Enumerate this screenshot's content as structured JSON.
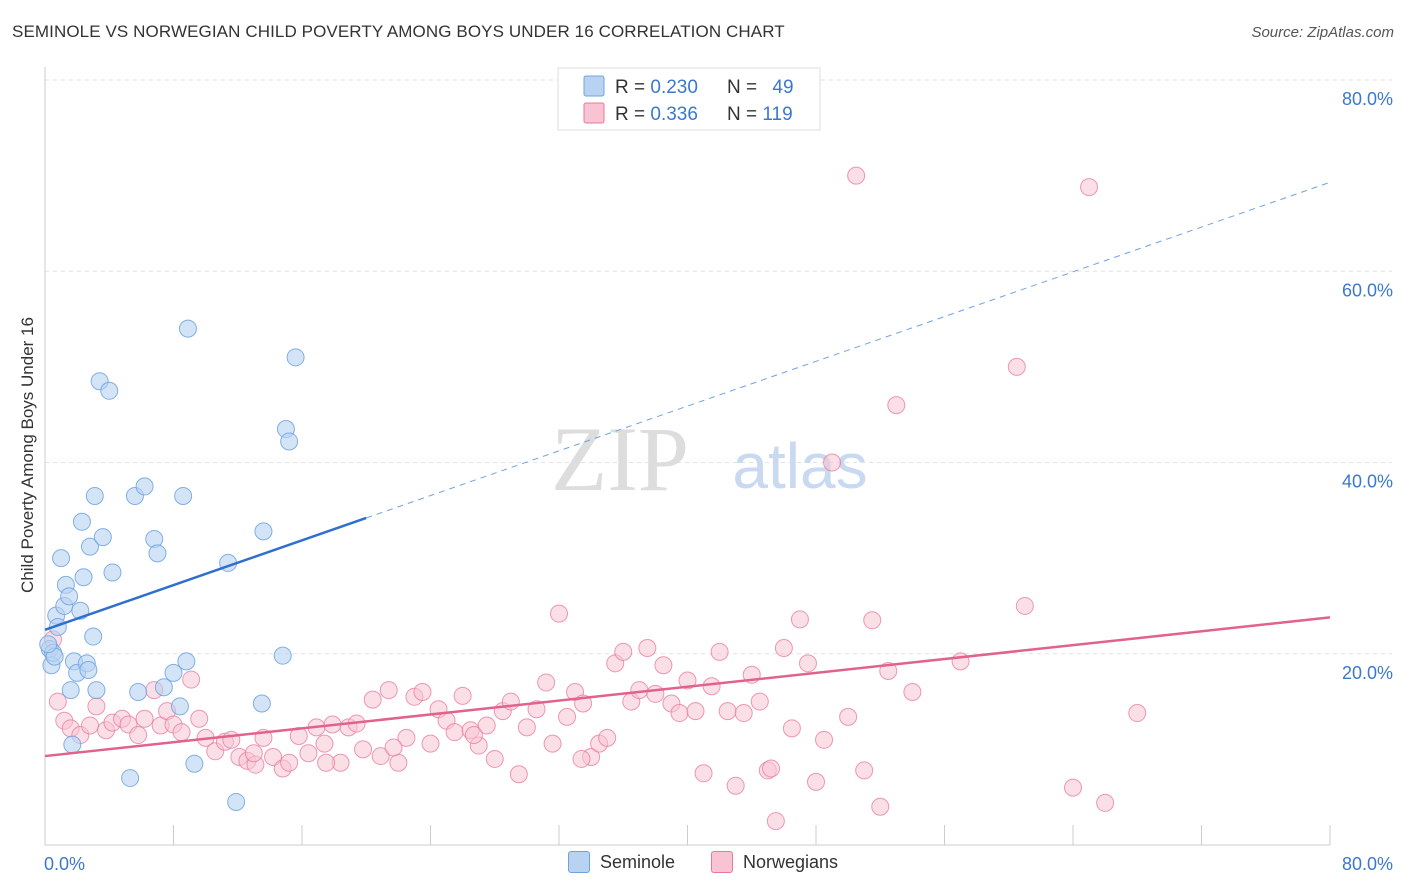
{
  "header": {
    "title": "SEMINOLE VS NORWEGIAN CHILD POVERTY AMONG BOYS UNDER 16 CORRELATION CHART",
    "source": "Source: ZipAtlas.com"
  },
  "watermark": {
    "zip": "ZIP",
    "atlas": "atlas"
  },
  "stats_legend": [
    {
      "r_label": "R = ",
      "r_value": "0.230",
      "n_label": "N = ",
      "n_value": "49",
      "color": "#6fa3e0",
      "fill": "#b8d2f2"
    },
    {
      "r_label": "R = ",
      "r_value": "0.336",
      "n_label": "N = ",
      "n_value": "119",
      "color": "#e8789c",
      "fill": "#f8c4d4"
    }
  ],
  "chart_data": {
    "type": "scatter",
    "title": "SEMINOLE VS NORWEGIAN CHILD POVERTY AMONG BOYS UNDER 16 CORRELATION CHART",
    "xlabel": "",
    "ylabel": "Child Poverty Among Boys Under 16",
    "xlim": [
      0,
      80
    ],
    "ylim": [
      0,
      80
    ],
    "x_tick_labels": [
      "0.0%",
      "80.0%"
    ],
    "y_tick_labels": [
      "20.0%",
      "40.0%",
      "60.0%",
      "80.0%"
    ],
    "y_ticks": [
      20,
      40,
      60,
      80
    ],
    "grid": true,
    "series": [
      {
        "name": "Seminole",
        "color": "#6fa3e0",
        "fill": "#b8d2f2",
        "trend": {
          "x": [
            0,
            20
          ],
          "y": [
            22.5,
            34.2
          ],
          "extend_to": 80,
          "extend_y": 69.3
        },
        "points": [
          [
            0.3,
            20.5
          ],
          [
            0.4,
            18.8
          ],
          [
            0.5,
            20.1
          ],
          [
            0.6,
            19.7
          ],
          [
            0.7,
            24.0
          ],
          [
            0.8,
            22.8
          ],
          [
            1.0,
            30.0
          ],
          [
            1.2,
            25.0
          ],
          [
            1.3,
            27.2
          ],
          [
            1.5,
            26.0
          ],
          [
            1.6,
            16.2
          ],
          [
            1.7,
            10.5
          ],
          [
            1.8,
            19.2
          ],
          [
            2.0,
            18.0
          ],
          [
            2.2,
            24.5
          ],
          [
            2.3,
            33.8
          ],
          [
            2.4,
            28.0
          ],
          [
            2.6,
            19.0
          ],
          [
            2.7,
            18.3
          ],
          [
            2.8,
            31.2
          ],
          [
            3.0,
            21.8
          ],
          [
            3.1,
            36.5
          ],
          [
            3.2,
            16.2
          ],
          [
            3.4,
            48.5
          ],
          [
            3.6,
            32.2
          ],
          [
            4.0,
            47.5
          ],
          [
            4.2,
            28.5
          ],
          [
            5.3,
            7.0
          ],
          [
            5.6,
            36.5
          ],
          [
            5.8,
            16.0
          ],
          [
            6.2,
            37.5
          ],
          [
            6.8,
            32.0
          ],
          [
            7.0,
            30.5
          ],
          [
            7.4,
            16.5
          ],
          [
            8.0,
            18.0
          ],
          [
            8.4,
            14.5
          ],
          [
            8.6,
            36.5
          ],
          [
            8.8,
            19.2
          ],
          [
            8.9,
            54.0
          ],
          [
            9.3,
            8.5
          ],
          [
            11.4,
            29.5
          ],
          [
            11.9,
            4.5
          ],
          [
            13.5,
            14.8
          ],
          [
            13.6,
            32.8
          ],
          [
            14.8,
            19.8
          ],
          [
            15.0,
            43.5
          ],
          [
            15.2,
            42.2
          ],
          [
            15.6,
            51.0
          ],
          [
            0.2,
            21.0
          ]
        ]
      },
      {
        "name": "Norwegians",
        "color": "#e8789c",
        "fill": "#f8c4d4",
        "trend": {
          "x": [
            0,
            80
          ],
          "y": [
            9.3,
            23.8
          ]
        },
        "points": [
          [
            0.5,
            21.5
          ],
          [
            0.8,
            15.0
          ],
          [
            1.2,
            13.0
          ],
          [
            1.6,
            12.2
          ],
          [
            2.2,
            11.5
          ],
          [
            2.8,
            12.5
          ],
          [
            3.2,
            14.5
          ],
          [
            3.8,
            12.0
          ],
          [
            4.2,
            12.8
          ],
          [
            4.8,
            13.2
          ],
          [
            5.2,
            12.6
          ],
          [
            5.8,
            11.5
          ],
          [
            6.2,
            13.2
          ],
          [
            6.8,
            16.2
          ],
          [
            7.2,
            12.5
          ],
          [
            7.6,
            14.0
          ],
          [
            8.0,
            12.6
          ],
          [
            8.5,
            11.8
          ],
          [
            9.1,
            17.3
          ],
          [
            9.6,
            13.2
          ],
          [
            10.0,
            11.2
          ],
          [
            10.6,
            9.8
          ],
          [
            11.2,
            10.8
          ],
          [
            11.6,
            11.0
          ],
          [
            12.1,
            9.2
          ],
          [
            12.6,
            8.8
          ],
          [
            13.1,
            8.4
          ],
          [
            13.6,
            11.2
          ],
          [
            14.2,
            9.2
          ],
          [
            14.8,
            8.0
          ],
          [
            15.2,
            8.6
          ],
          [
            15.8,
            11.4
          ],
          [
            16.4,
            9.6
          ],
          [
            16.9,
            12.3
          ],
          [
            17.4,
            10.6
          ],
          [
            17.9,
            12.6
          ],
          [
            18.4,
            8.6
          ],
          [
            18.9,
            12.3
          ],
          [
            19.4,
            12.7
          ],
          [
            19.8,
            10.0
          ],
          [
            20.4,
            15.2
          ],
          [
            20.9,
            9.3
          ],
          [
            21.4,
            16.2
          ],
          [
            22.0,
            8.6
          ],
          [
            22.5,
            11.2
          ],
          [
            23.0,
            15.5
          ],
          [
            23.5,
            16.0
          ],
          [
            24.0,
            10.6
          ],
          [
            24.5,
            14.2
          ],
          [
            25.0,
            13.0
          ],
          [
            25.5,
            11.8
          ],
          [
            26.0,
            15.6
          ],
          [
            26.5,
            12.0
          ],
          [
            27.0,
            10.4
          ],
          [
            27.5,
            12.5
          ],
          [
            28.0,
            9.0
          ],
          [
            28.5,
            14.0
          ],
          [
            29.0,
            15.0
          ],
          [
            29.5,
            7.4
          ],
          [
            30.0,
            12.3
          ],
          [
            30.6,
            14.2
          ],
          [
            31.2,
            17.0
          ],
          [
            31.6,
            10.6
          ],
          [
            32.0,
            24.2
          ],
          [
            32.5,
            13.4
          ],
          [
            33.0,
            16.0
          ],
          [
            33.5,
            14.8
          ],
          [
            34.0,
            9.2
          ],
          [
            34.5,
            10.6
          ],
          [
            35.0,
            11.2
          ],
          [
            35.5,
            19.0
          ],
          [
            36.0,
            20.2
          ],
          [
            36.5,
            15.0
          ],
          [
            37.0,
            16.2
          ],
          [
            37.5,
            20.6
          ],
          [
            38.0,
            15.8
          ],
          [
            38.5,
            18.8
          ],
          [
            39.0,
            14.8
          ],
          [
            39.5,
            13.8
          ],
          [
            40.0,
            17.2
          ],
          [
            40.5,
            14.0
          ],
          [
            41.0,
            7.5
          ],
          [
            41.5,
            16.6
          ],
          [
            42.0,
            20.2
          ],
          [
            42.5,
            14.0
          ],
          [
            43.0,
            6.2
          ],
          [
            43.5,
            13.8
          ],
          [
            44.0,
            17.8
          ],
          [
            44.5,
            15.0
          ],
          [
            45.0,
            7.8
          ],
          [
            45.5,
            2.5
          ],
          [
            46.0,
            20.6
          ],
          [
            46.5,
            12.2
          ],
          [
            47.0,
            23.6
          ],
          [
            47.5,
            19.0
          ],
          [
            48.0,
            6.6
          ],
          [
            48.5,
            11.0
          ],
          [
            49.0,
            40.0
          ],
          [
            50.0,
            13.4
          ],
          [
            50.5,
            70.0
          ],
          [
            51.0,
            7.8
          ],
          [
            51.5,
            23.5
          ],
          [
            52.0,
            4.0
          ],
          [
            52.5,
            18.2
          ],
          [
            53.0,
            46.0
          ],
          [
            54.0,
            16.0
          ],
          [
            57.0,
            19.2
          ],
          [
            60.5,
            50.0
          ],
          [
            61.0,
            25.0
          ],
          [
            64.0,
            6.0
          ],
          [
            65.0,
            68.8
          ],
          [
            66.0,
            4.4
          ],
          [
            68.0,
            13.8
          ],
          [
            45.2,
            8.0
          ],
          [
            33.4,
            9.0
          ],
          [
            26.7,
            11.5
          ],
          [
            21.7,
            10.2
          ],
          [
            17.5,
            8.6
          ],
          [
            13.0,
            9.6
          ]
        ]
      }
    ]
  },
  "legend_bottom": [
    {
      "label": "Seminole",
      "color": "#6fa3e0",
      "fill": "#b8d2f2"
    },
    {
      "label": "Norwegians",
      "color": "#e8789c",
      "fill": "#f8c4d4"
    }
  ]
}
